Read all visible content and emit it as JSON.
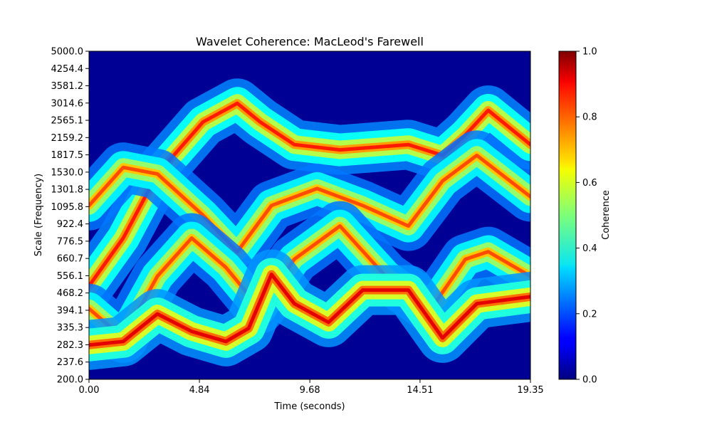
{
  "chart_data": {
    "type": "heatmap",
    "title": "Wavelet Coherence: MacLeod's Farewell",
    "xlabel": "Time (seconds)",
    "ylabel": "Scale (Frequency)",
    "colorbar_label": "Coherence",
    "colormap": "jet",
    "xlim": [
      0.0,
      19.35
    ],
    "ylim": [
      200.0,
      5000.0
    ],
    "y_scale": "log",
    "value_range": [
      0.0,
      1.0
    ],
    "x_ticks": [
      "0.00",
      "4.84",
      "9.68",
      "14.51",
      "19.35"
    ],
    "y_ticks": [
      "200.0",
      "237.6",
      "282.3",
      "335.3",
      "394.1",
      "468.2",
      "556.1",
      "660.7",
      "776.5",
      "922.4",
      "1095.8",
      "1301.8",
      "1530.0",
      "1817.5",
      "2159.2",
      "2565.1",
      "3014.6",
      "3581.2",
      "4254.4",
      "5000.0"
    ],
    "colorbar_ticks": [
      "0.0",
      "0.2",
      "0.4",
      "0.6",
      "0.8",
      "1.0"
    ],
    "bands": [
      {
        "t": [
          0.0,
          1.5,
          3.0,
          5.0,
          6.5,
          7.5,
          9.0,
          11.0,
          14.0,
          15.5,
          16.5,
          17.5,
          19.35
        ],
        "scale": [
          500,
          800,
          1500,
          2500,
          3000,
          2500,
          2000,
          1900,
          2000,
          1800,
          2200,
          2800,
          2000
        ],
        "peak": 0.85
      },
      {
        "t": [
          0.0,
          1.5,
          3.0,
          5.0,
          6.5,
          8.0,
          10.0,
          12.0,
          14.0,
          15.5,
          17.0,
          19.35
        ],
        "scale": [
          1100,
          1600,
          1500,
          1000,
          700,
          1100,
          1300,
          1100,
          900,
          1400,
          1800,
          1200
        ],
        "peak": 0.8
      },
      {
        "t": [
          0.0,
          1.5,
          3.0,
          4.5,
          6.0,
          7.5,
          9.0,
          11.0,
          13.0,
          15.0,
          16.5,
          17.5,
          19.35
        ],
        "scale": [
          400,
          300,
          550,
          800,
          600,
          400,
          650,
          900,
          550,
          400,
          650,
          700,
          550
        ],
        "peak": 0.8
      },
      {
        "t": [
          0.0,
          1.5,
          3.0,
          4.5,
          6.0,
          7.0,
          8.0,
          9.0,
          10.5,
          12.0,
          14.0,
          15.5,
          17.0,
          19.35
        ],
        "scale": [
          280,
          290,
          380,
          320,
          290,
          330,
          560,
          420,
          350,
          480,
          480,
          300,
          420,
          450
        ],
        "peak": 0.9
      }
    ]
  }
}
